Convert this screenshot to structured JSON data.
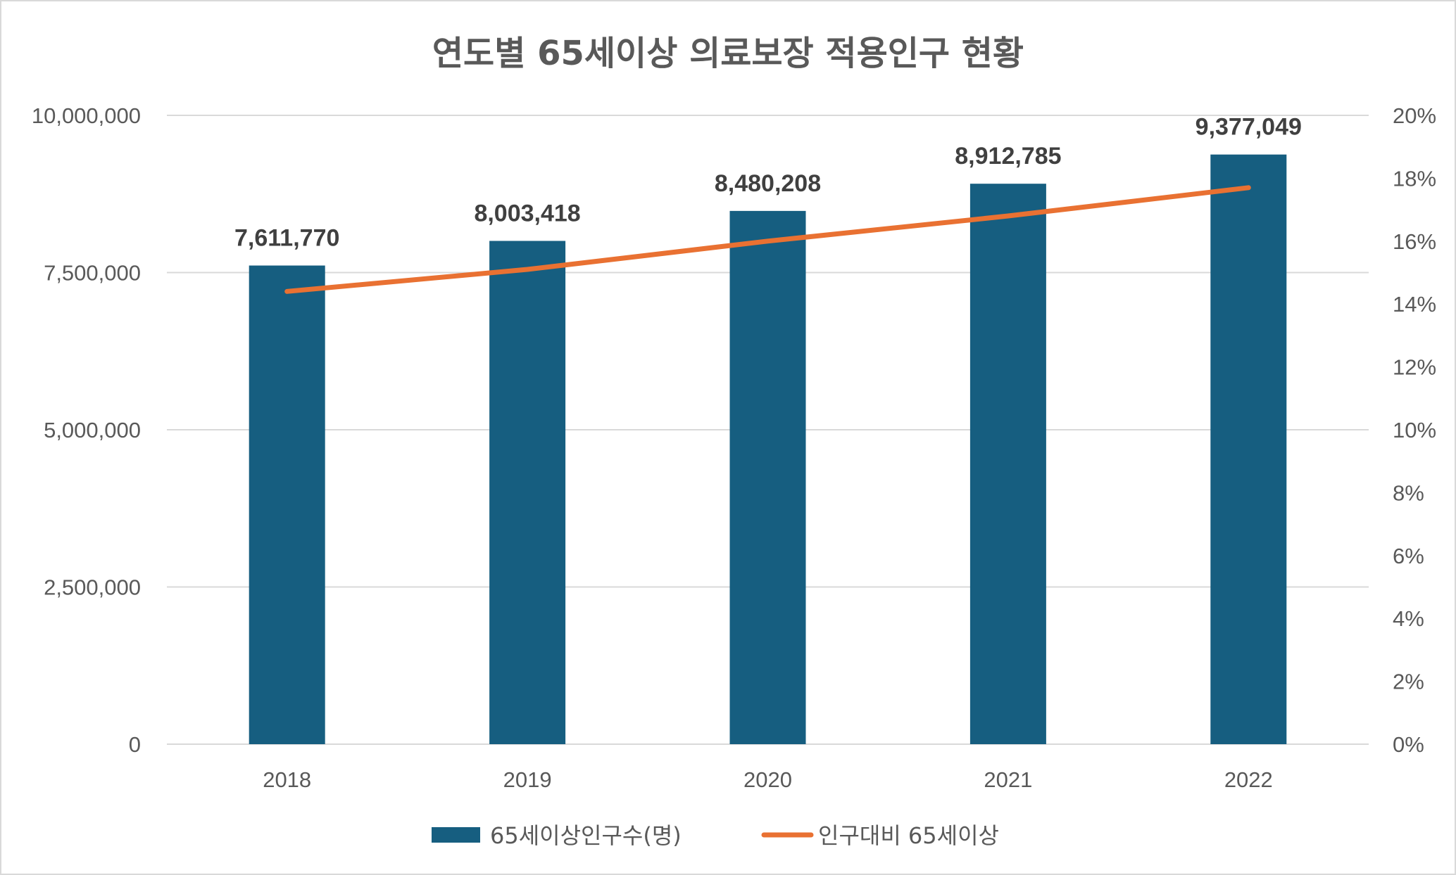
{
  "chart_data": {
    "type": "bar+line",
    "title": "연도별 65세이상 의료보장 적용인구 현황",
    "categories": [
      "2018",
      "2019",
      "2020",
      "2021",
      "2022"
    ],
    "series": [
      {
        "name": "65세이상인구수(명)",
        "type": "bar",
        "axis": "left",
        "values": [
          7611770,
          8003418,
          8480208,
          8912785,
          9377049
        ],
        "labels": [
          "7,611,770",
          "8,003,418",
          "8,480,208",
          "8,912,785",
          "9,377,049"
        ],
        "color": "#165e80"
      },
      {
        "name": "인구대비 65세이상",
        "type": "line",
        "axis": "right",
        "values": [
          14.4,
          15.1,
          16.0,
          16.8,
          17.7
        ],
        "color": "#e97132"
      }
    ],
    "y_left": {
      "range": [
        0,
        10000000
      ],
      "ticks": [
        "0",
        "2,500,000",
        "5,000,000",
        "7,500,000",
        "10,000,000"
      ]
    },
    "y_right": {
      "range": [
        0,
        20
      ],
      "ticks": [
        "0%",
        "2%",
        "4%",
        "6%",
        "8%",
        "10%",
        "12%",
        "14%",
        "16%",
        "18%",
        "20%"
      ]
    },
    "grid": true,
    "legend": "bottom"
  }
}
